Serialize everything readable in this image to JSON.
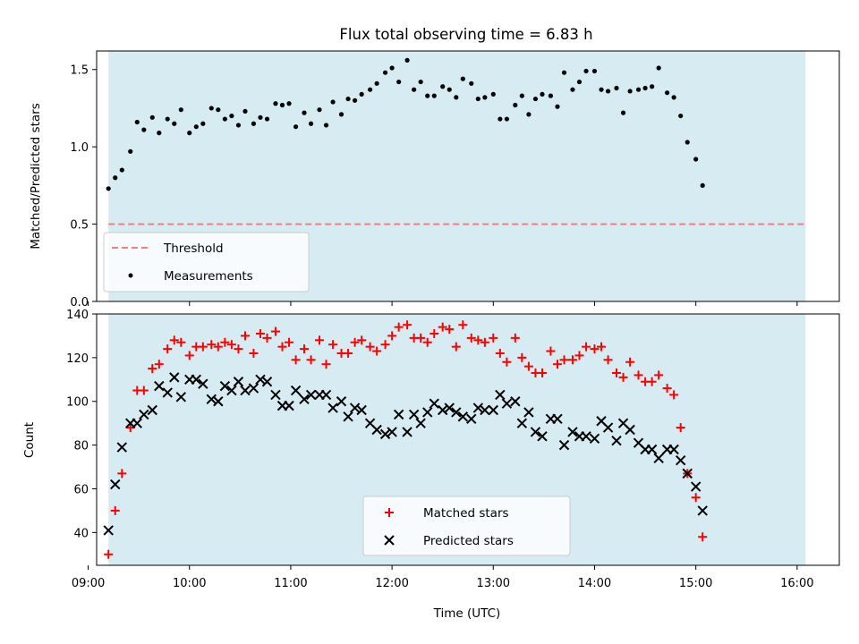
{
  "chart_data": [
    {
      "type": "scatter",
      "title": "Flux total observing time = 6.83 h",
      "ylabel": "Matched/Predicted stars",
      "xlabel": "",
      "xlim": [
        "09:05",
        "16:25"
      ],
      "ylim": [
        0,
        1.62
      ],
      "yticks": [
        "0.0",
        "0.5",
        "1.0",
        "1.5"
      ],
      "shaded_span": [
        "09:12",
        "16:05"
      ],
      "grid": false,
      "legend_position": "lower-left",
      "colors": {
        "span": "#add8e6",
        "threshold": "#f08080",
        "measurements": "#000000"
      },
      "threshold": {
        "name": "Threshold",
        "value": 0.5,
        "range": [
          "09:12",
          "16:05"
        ]
      },
      "series": [
        {
          "name": "Measurements",
          "points": [
            [
              "09:12",
              0.73
            ],
            [
              "09:16",
              0.8
            ],
            [
              "09:20",
              0.85
            ],
            [
              "09:25",
              0.97
            ],
            [
              "09:29",
              1.16
            ],
            [
              "09:33",
              1.11
            ],
            [
              "09:38",
              1.19
            ],
            [
              "09:42",
              1.09
            ],
            [
              "09:47",
              1.18
            ],
            [
              "09:51",
              1.15
            ],
            [
              "09:55",
              1.24
            ],
            [
              "10:00",
              1.09
            ],
            [
              "10:04",
              1.13
            ],
            [
              "10:08",
              1.15
            ],
            [
              "10:13",
              1.25
            ],
            [
              "10:17",
              1.24
            ],
            [
              "10:21",
              1.18
            ],
            [
              "10:25",
              1.2
            ],
            [
              "10:29",
              1.14
            ],
            [
              "10:33",
              1.23
            ],
            [
              "10:38",
              1.15
            ],
            [
              "10:42",
              1.19
            ],
            [
              "10:46",
              1.18
            ],
            [
              "10:51",
              1.28
            ],
            [
              "10:55",
              1.27
            ],
            [
              "10:59",
              1.28
            ],
            [
              "11:03",
              1.13
            ],
            [
              "11:08",
              1.22
            ],
            [
              "11:12",
              1.15
            ],
            [
              "11:17",
              1.24
            ],
            [
              "11:21",
              1.14
            ],
            [
              "11:25",
              1.29
            ],
            [
              "11:30",
              1.21
            ],
            [
              "11:34",
              1.31
            ],
            [
              "11:38",
              1.3
            ],
            [
              "11:42",
              1.34
            ],
            [
              "11:47",
              1.37
            ],
            [
              "11:51",
              1.41
            ],
            [
              "11:56",
              1.48
            ],
            [
              "12:00",
              1.51
            ],
            [
              "12:04",
              1.42
            ],
            [
              "12:09",
              1.56
            ],
            [
              "12:13",
              1.37
            ],
            [
              "12:17",
              1.42
            ],
            [
              "12:21",
              1.33
            ],
            [
              "12:25",
              1.33
            ],
            [
              "12:30",
              1.39
            ],
            [
              "12:34",
              1.37
            ],
            [
              "12:38",
              1.32
            ],
            [
              "12:42",
              1.44
            ],
            [
              "12:47",
              1.41
            ],
            [
              "12:51",
              1.31
            ],
            [
              "12:55",
              1.32
            ],
            [
              "13:00",
              1.34
            ],
            [
              "13:04",
              1.18
            ],
            [
              "13:08",
              1.18
            ],
            [
              "13:13",
              1.27
            ],
            [
              "13:17",
              1.33
            ],
            [
              "13:21",
              1.21
            ],
            [
              "13:25",
              1.31
            ],
            [
              "13:29",
              1.34
            ],
            [
              "13:34",
              1.33
            ],
            [
              "13:38",
              1.26
            ],
            [
              "13:42",
              1.48
            ],
            [
              "13:47",
              1.37
            ],
            [
              "13:51",
              1.42
            ],
            [
              "13:55",
              1.49
            ],
            [
              "14:00",
              1.49
            ],
            [
              "14:04",
              1.37
            ],
            [
              "14:08",
              1.36
            ],
            [
              "14:13",
              1.38
            ],
            [
              "14:17",
              1.22
            ],
            [
              "14:21",
              1.36
            ],
            [
              "14:26",
              1.37
            ],
            [
              "14:30",
              1.38
            ],
            [
              "14:34",
              1.39
            ],
            [
              "14:38",
              1.51
            ],
            [
              "14:43",
              1.35
            ],
            [
              "14:47",
              1.32
            ],
            [
              "14:51",
              1.2
            ],
            [
              "14:55",
              1.03
            ],
            [
              "15:00",
              0.92
            ],
            [
              "15:04",
              0.75
            ]
          ]
        }
      ]
    },
    {
      "type": "scatter",
      "title": "",
      "xlabel": "Time (UTC)",
      "ylabel": "Count",
      "xlim": [
        "09:05",
        "16:25"
      ],
      "ylim": [
        25,
        140
      ],
      "yticks": [
        "40",
        "60",
        "80",
        "100",
        "120",
        "140"
      ],
      "xticks": [
        "09:00",
        "10:00",
        "11:00",
        "12:00",
        "13:00",
        "14:00",
        "15:00",
        "16:00"
      ],
      "shaded_span": [
        "09:12",
        "16:05"
      ],
      "grid": false,
      "legend_position": "lower-center",
      "colors": {
        "span": "#add8e6",
        "matched": "#ff0000",
        "predicted": "#000000"
      },
      "series": [
        {
          "name": "Matched stars",
          "marker": "+",
          "points": [
            [
              "09:12",
              30
            ],
            [
              "09:16",
              50
            ],
            [
              "09:20",
              67
            ],
            [
              "09:25",
              88
            ],
            [
              "09:29",
              105
            ],
            [
              "09:33",
              105
            ],
            [
              "09:38",
              115
            ],
            [
              "09:42",
              117
            ],
            [
              "09:47",
              124
            ],
            [
              "09:51",
              128
            ],
            [
              "09:55",
              127
            ],
            [
              "10:00",
              121
            ],
            [
              "10:04",
              125
            ],
            [
              "10:08",
              125
            ],
            [
              "10:13",
              126
            ],
            [
              "10:17",
              125
            ],
            [
              "10:21",
              127
            ],
            [
              "10:25",
              126
            ],
            [
              "10:29",
              124
            ],
            [
              "10:33",
              130
            ],
            [
              "10:38",
              122
            ],
            [
              "10:42",
              131
            ],
            [
              "10:46",
              129
            ],
            [
              "10:51",
              132
            ],
            [
              "10:55",
              125
            ],
            [
              "10:59",
              127
            ],
            [
              "11:03",
              119
            ],
            [
              "11:08",
              124
            ],
            [
              "11:12",
              119
            ],
            [
              "11:17",
              128
            ],
            [
              "11:21",
              117
            ],
            [
              "11:25",
              126
            ],
            [
              "11:30",
              122
            ],
            [
              "11:34",
              122
            ],
            [
              "11:38",
              127
            ],
            [
              "11:42",
              128
            ],
            [
              "11:47",
              125
            ],
            [
              "11:51",
              123
            ],
            [
              "11:56",
              126
            ],
            [
              "12:00",
              130
            ],
            [
              "12:04",
              134
            ],
            [
              "12:09",
              135
            ],
            [
              "12:13",
              129
            ],
            [
              "12:17",
              129
            ],
            [
              "12:21",
              127
            ],
            [
              "12:25",
              131
            ],
            [
              "12:30",
              134
            ],
            [
              "12:34",
              133
            ],
            [
              "12:38",
              125
            ],
            [
              "12:42",
              135
            ],
            [
              "12:47",
              129
            ],
            [
              "12:51",
              128
            ],
            [
              "12:55",
              127
            ],
            [
              "13:00",
              129
            ],
            [
              "13:04",
              122
            ],
            [
              "13:08",
              118
            ],
            [
              "13:13",
              129
            ],
            [
              "13:17",
              120
            ],
            [
              "13:21",
              116
            ],
            [
              "13:25",
              113
            ],
            [
              "13:29",
              113
            ],
            [
              "13:34",
              123
            ],
            [
              "13:38",
              117
            ],
            [
              "13:42",
              119
            ],
            [
              "13:47",
              119
            ],
            [
              "13:51",
              121
            ],
            [
              "13:55",
              125
            ],
            [
              "14:00",
              124
            ],
            [
              "14:04",
              125
            ],
            [
              "14:08",
              119
            ],
            [
              "14:13",
              113
            ],
            [
              "14:17",
              111
            ],
            [
              "14:21",
              118
            ],
            [
              "14:26",
              112
            ],
            [
              "14:30",
              109
            ],
            [
              "14:34",
              109
            ],
            [
              "14:38",
              112
            ],
            [
              "14:43",
              106
            ],
            [
              "14:47",
              103
            ],
            [
              "14:51",
              88
            ],
            [
              "14:55",
              67
            ],
            [
              "15:00",
              56
            ],
            [
              "15:04",
              38
            ]
          ]
        },
        {
          "name": "Predicted stars",
          "marker": "x",
          "points": [
            [
              "09:12",
              41
            ],
            [
              "09:16",
              62
            ],
            [
              "09:20",
              79
            ],
            [
              "09:25",
              90
            ],
            [
              "09:29",
              90
            ],
            [
              "09:33",
              94
            ],
            [
              "09:38",
              96
            ],
            [
              "09:42",
              107
            ],
            [
              "09:47",
              104
            ],
            [
              "09:51",
              111
            ],
            [
              "09:55",
              102
            ],
            [
              "10:00",
              110
            ],
            [
              "10:04",
              110
            ],
            [
              "10:08",
              108
            ],
            [
              "10:13",
              101
            ],
            [
              "10:17",
              100
            ],
            [
              "10:21",
              107
            ],
            [
              "10:25",
              105
            ],
            [
              "10:29",
              109
            ],
            [
              "10:33",
              105
            ],
            [
              "10:38",
              106
            ],
            [
              "10:42",
              110
            ],
            [
              "10:46",
              109
            ],
            [
              "10:51",
              103
            ],
            [
              "10:55",
              98
            ],
            [
              "10:59",
              98
            ],
            [
              "11:03",
              105
            ],
            [
              "11:08",
              101
            ],
            [
              "11:12",
              103
            ],
            [
              "11:17",
              103
            ],
            [
              "11:21",
              103
            ],
            [
              "11:25",
              97
            ],
            [
              "11:30",
              100
            ],
            [
              "11:34",
              93
            ],
            [
              "11:38",
              97
            ],
            [
              "11:42",
              96
            ],
            [
              "11:47",
              90
            ],
            [
              "11:51",
              87
            ],
            [
              "11:56",
              85
            ],
            [
              "12:00",
              86
            ],
            [
              "12:04",
              94
            ],
            [
              "12:09",
              86
            ],
            [
              "12:13",
              94
            ],
            [
              "12:17",
              90
            ],
            [
              "12:21",
              95
            ],
            [
              "12:25",
              99
            ],
            [
              "12:30",
              96
            ],
            [
              "12:34",
              97
            ],
            [
              "12:38",
              95
            ],
            [
              "12:42",
              93
            ],
            [
              "12:47",
              92
            ],
            [
              "12:51",
              97
            ],
            [
              "12:55",
              96
            ],
            [
              "13:00",
              96
            ],
            [
              "13:04",
              103
            ],
            [
              "13:08",
              99
            ],
            [
              "13:13",
              100
            ],
            [
              "13:17",
              90
            ],
            [
              "13:21",
              95
            ],
            [
              "13:25",
              86
            ],
            [
              "13:29",
              84
            ],
            [
              "13:34",
              92
            ],
            [
              "13:38",
              92
            ],
            [
              "13:42",
              80
            ],
            [
              "13:47",
              86
            ],
            [
              "13:51",
              84
            ],
            [
              "13:55",
              84
            ],
            [
              "14:00",
              83
            ],
            [
              "14:04",
              91
            ],
            [
              "14:08",
              88
            ],
            [
              "14:13",
              82
            ],
            [
              "14:17",
              90
            ],
            [
              "14:21",
              87
            ],
            [
              "14:26",
              81
            ],
            [
              "14:30",
              78
            ],
            [
              "14:34",
              78
            ],
            [
              "14:38",
              74
            ],
            [
              "14:43",
              78
            ],
            [
              "14:47",
              78
            ],
            [
              "14:51",
              73
            ],
            [
              "14:55",
              67
            ],
            [
              "15:00",
              61
            ],
            [
              "15:04",
              50
            ]
          ]
        }
      ]
    }
  ]
}
